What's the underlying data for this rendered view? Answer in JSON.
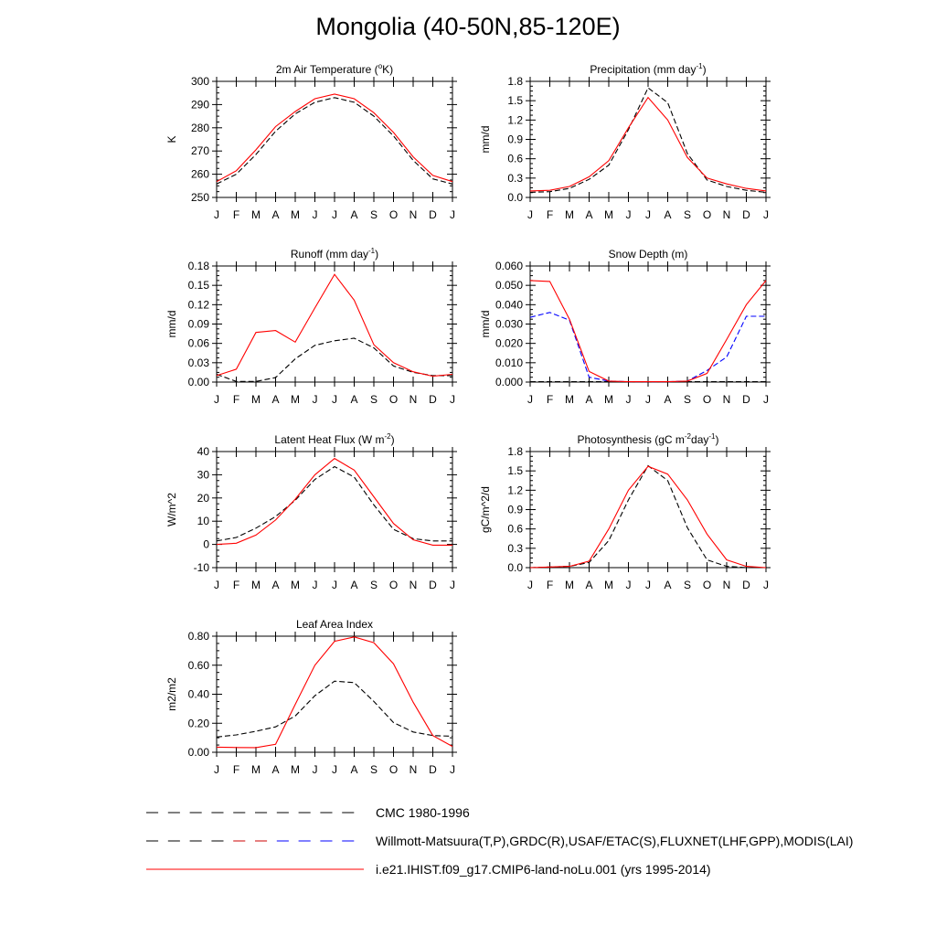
{
  "page": {
    "title": "Mongolia (40-50N,85-120E)"
  },
  "legend": [
    {
      "name": "CMC 1980-1996",
      "style": "dash",
      "colors": [
        "#000000"
      ]
    },
    {
      "name": "Willmott-Matsuura(T,P),GRDC(R),USAF/ETAC(S),FLUXNET(LHF,GPP),MODIS(LAI)",
      "style": "dash",
      "colors": [
        "#000000",
        "#cc0000",
        "#0000ff"
      ]
    },
    {
      "name": "i.e21.IHIST.f09_g17.CMIP6-land-noLu.001 (yrs 1995-2014)",
      "style": "solid",
      "colors": [
        "#ff0000"
      ]
    }
  ],
  "colors": {
    "model": "#ff0000",
    "obs": "#000000",
    "cmc": "#0000ff"
  },
  "chart_data": [
    {
      "type": "line",
      "title": "2m Air Temperature (°K)",
      "title_parts": [
        "2m Air Temperature (",
        "o",
        "K)"
      ],
      "ylabel": "K",
      "categories": [
        "J",
        "F",
        "M",
        "A",
        "M",
        "J",
        "J",
        "A",
        "S",
        "O",
        "N",
        "D",
        "J"
      ],
      "ylim": [
        250,
        300
      ],
      "yticks": [
        250,
        260,
        270,
        280,
        290,
        300
      ],
      "yticklabels": [
        "250",
        "260",
        "270",
        "280",
        "290",
        "300"
      ],
      "series": [
        {
          "name": "i.e21.IHIST.f09_g17.CMIP6-land-noLu.001 (yrs 1995-2014)",
          "style": "solid",
          "color": "#ff0000",
          "values": [
            256.8,
            261.5,
            270.5,
            280.5,
            287.0,
            292.5,
            294.5,
            292.5,
            286.5,
            278.0,
            267.5,
            259.5,
            256.8
          ]
        },
        {
          "name": "Willmott-Matsuura(T,P)",
          "style": "dash",
          "color": "#000000",
          "values": [
            255.8,
            260.0,
            268.5,
            278.5,
            286.0,
            291.0,
            293.0,
            291.0,
            285.0,
            276.5,
            266.0,
            258.0,
            255.8
          ]
        }
      ]
    },
    {
      "type": "line",
      "title": "Precipitation (mm day-1)",
      "title_parts": [
        "Precipitation (mm day",
        "-1",
        ")"
      ],
      "ylabel": "mm/d",
      "categories": [
        "J",
        "F",
        "M",
        "A",
        "M",
        "J",
        "J",
        "A",
        "S",
        "O",
        "N",
        "D",
        "J"
      ],
      "ylim": [
        0,
        1.8
      ],
      "yticks": [
        0,
        0.3,
        0.6,
        0.9,
        1.2,
        1.5,
        1.8
      ],
      "yticklabels": [
        "0.0",
        "0.3",
        "0.6",
        "0.9",
        "1.2",
        "1.5",
        "1.8"
      ],
      "series": [
        {
          "name": "i.e21.IHIST.f09_g17.CMIP6-land-noLu.001 (yrs 1995-2014)",
          "style": "solid",
          "color": "#ff0000",
          "values": [
            0.1,
            0.11,
            0.17,
            0.32,
            0.57,
            1.08,
            1.55,
            1.2,
            0.62,
            0.3,
            0.21,
            0.14,
            0.1
          ]
        },
        {
          "name": "Willmott-Matsuura(T,P)",
          "style": "dash",
          "color": "#000000",
          "values": [
            0.08,
            0.09,
            0.14,
            0.28,
            0.5,
            1.05,
            1.7,
            1.47,
            0.68,
            0.27,
            0.17,
            0.11,
            0.08
          ]
        }
      ]
    },
    {
      "type": "line",
      "title": "Runoff (mm day-1)",
      "title_parts": [
        "Runoff (mm day",
        "-1",
        ")"
      ],
      "ylabel": "mm/d",
      "categories": [
        "J",
        "F",
        "M",
        "A",
        "M",
        "J",
        "J",
        "A",
        "S",
        "O",
        "N",
        "D",
        "J"
      ],
      "ylim": [
        0,
        0.18
      ],
      "yticks": [
        0,
        0.03,
        0.06,
        0.09,
        0.12,
        0.15,
        0.18
      ],
      "yticklabels": [
        "0.00",
        "0.03",
        "0.06",
        "0.09",
        "0.12",
        "0.15",
        "0.18"
      ],
      "series": [
        {
          "name": "i.e21.IHIST.f09_g17.CMIP6-land-noLu.001 (yrs 1995-2014)",
          "style": "solid",
          "color": "#ff0000",
          "values": [
            0.01,
            0.02,
            0.077,
            0.08,
            0.062,
            0.115,
            0.167,
            0.127,
            0.058,
            0.03,
            0.016,
            0.009,
            0.012
          ]
        },
        {
          "name": "GRDC(R)",
          "style": "dash",
          "color": "#000000",
          "values": [
            0.012,
            0.001,
            0.001,
            0.007,
            0.036,
            0.057,
            0.064,
            0.068,
            0.053,
            0.025,
            0.015,
            0.01,
            0.01
          ]
        }
      ]
    },
    {
      "type": "line",
      "title": "Snow Depth (m)",
      "title_parts": [
        "Snow Depth (m)"
      ],
      "ylabel": "mm/d",
      "categories": [
        "J",
        "F",
        "M",
        "A",
        "M",
        "J",
        "J",
        "A",
        "S",
        "O",
        "N",
        "D",
        "J"
      ],
      "ylim": [
        0,
        0.06
      ],
      "yticks": [
        0,
        0.01,
        0.02,
        0.03,
        0.04,
        0.05,
        0.06
      ],
      "yticklabels": [
        "0.000",
        "0.010",
        "0.020",
        "0.030",
        "0.040",
        "0.050",
        "0.060"
      ],
      "series": [
        {
          "name": "i.e21.IHIST.f09_g17.CMIP6-land-noLu.001 (yrs 1995-2014)",
          "style": "solid",
          "color": "#ff0000",
          "values": [
            0.0525,
            0.052,
            0.0325,
            0.0055,
            0.0005,
            0.0002,
            0.0002,
            0.0002,
            0.0005,
            0.0045,
            0.022,
            0.04,
            0.0525
          ]
        },
        {
          "name": "CMC 1980-1996",
          "style": "dash",
          "color": "#0000ff",
          "values": [
            0.0335,
            0.036,
            0.032,
            0.0025,
            0.0005,
            0.0002,
            0.0002,
            0.0002,
            0.0005,
            0.006,
            0.013,
            0.034,
            0.034
          ]
        },
        {
          "name": "USAF/ETAC(S)",
          "style": "dash",
          "color": "#000000",
          "values": [
            0.0002,
            0.0002,
            0.0002,
            0.0002,
            0.0002,
            0.0002,
            0.0002,
            0.0002,
            0.0002,
            0.0002,
            0.0002,
            0.0002,
            0.0002
          ]
        }
      ]
    },
    {
      "type": "line",
      "title": "Latent Heat Flux (W m-2)",
      "title_parts": [
        "Latent Heat Flux (W m",
        "-2",
        ")"
      ],
      "ylabel": "W/m^2",
      "categories": [
        "J",
        "F",
        "M",
        "A",
        "M",
        "J",
        "J",
        "A",
        "S",
        "O",
        "N",
        "D",
        "J"
      ],
      "ylim": [
        -10,
        40
      ],
      "yticks": [
        -10,
        0,
        10,
        20,
        30,
        40
      ],
      "yticklabels": [
        "-10",
        "0",
        "10",
        "20",
        "30",
        "40"
      ],
      "series": [
        {
          "name": "i.e21.IHIST.f09_g17.CMIP6-land-noLu.001 (yrs 1995-2014)",
          "style": "solid",
          "color": "#ff0000",
          "values": [
            0.0,
            0.5,
            4.0,
            10.5,
            19.5,
            30.0,
            37.0,
            32.0,
            20.5,
            9.0,
            2.0,
            -0.3,
            -0.3
          ]
        },
        {
          "name": "FLUXNET(LHF)",
          "style": "dash",
          "color": "#000000",
          "values": [
            1.5,
            3.0,
            7.0,
            12.0,
            19.0,
            28.0,
            33.5,
            29.0,
            17.0,
            6.5,
            2.5,
            1.5,
            1.5
          ]
        }
      ]
    },
    {
      "type": "line",
      "title": "Photosynthesis (gC m-2day-1)",
      "title_parts": [
        "Photosynthesis (gC m",
        "-2",
        "day",
        "-1",
        ")"
      ],
      "ylabel": "gC/m^2/d",
      "categories": [
        "J",
        "F",
        "M",
        "A",
        "M",
        "J",
        "J",
        "A",
        "S",
        "O",
        "N",
        "D",
        "J"
      ],
      "ylim": [
        0,
        1.8
      ],
      "yticks": [
        0,
        0.3,
        0.6,
        0.9,
        1.2,
        1.5,
        1.8
      ],
      "yticklabels": [
        "0.0",
        "0.3",
        "0.6",
        "0.9",
        "1.2",
        "1.5",
        "1.8"
      ],
      "series": [
        {
          "name": "i.e21.IHIST.f09_g17.CMIP6-land-noLu.001 (yrs 1995-2014)",
          "style": "solid",
          "color": "#ff0000",
          "values": [
            0.0,
            0.01,
            0.02,
            0.1,
            0.6,
            1.2,
            1.57,
            1.45,
            1.05,
            0.52,
            0.12,
            0.02,
            0.0
          ]
        },
        {
          "name": "FLUXNET(GPP)",
          "style": "dash",
          "color": "#000000",
          "values": [
            0.0,
            0.01,
            0.02,
            0.08,
            0.42,
            1.05,
            1.58,
            1.35,
            0.62,
            0.12,
            0.02,
            0.0,
            0.0
          ]
        }
      ]
    },
    {
      "type": "line",
      "title": "Leaf Area Index",
      "title_parts": [
        "Leaf Area Index"
      ],
      "ylabel": "m2/m2",
      "categories": [
        "J",
        "F",
        "M",
        "A",
        "M",
        "J",
        "J",
        "A",
        "S",
        "O",
        "N",
        "D",
        "J"
      ],
      "ylim": [
        0,
        0.8
      ],
      "yticks": [
        0,
        0.2,
        0.4,
        0.6,
        0.8
      ],
      "yticklabels": [
        "0.00",
        "0.20",
        "0.40",
        "0.60",
        "0.80"
      ],
      "series": [
        {
          "name": "i.e21.IHIST.f09_g17.CMIP6-land-noLu.001 (yrs 1995-2014)",
          "style": "solid",
          "color": "#ff0000",
          "values": [
            0.035,
            0.033,
            0.032,
            0.055,
            0.33,
            0.6,
            0.765,
            0.795,
            0.755,
            0.61,
            0.345,
            0.115,
            0.04
          ]
        },
        {
          "name": "MODIS(LAI)",
          "style": "dash",
          "color": "#000000",
          "values": [
            0.105,
            0.12,
            0.145,
            0.175,
            0.25,
            0.39,
            0.49,
            0.48,
            0.35,
            0.205,
            0.14,
            0.115,
            0.11
          ]
        }
      ]
    }
  ]
}
